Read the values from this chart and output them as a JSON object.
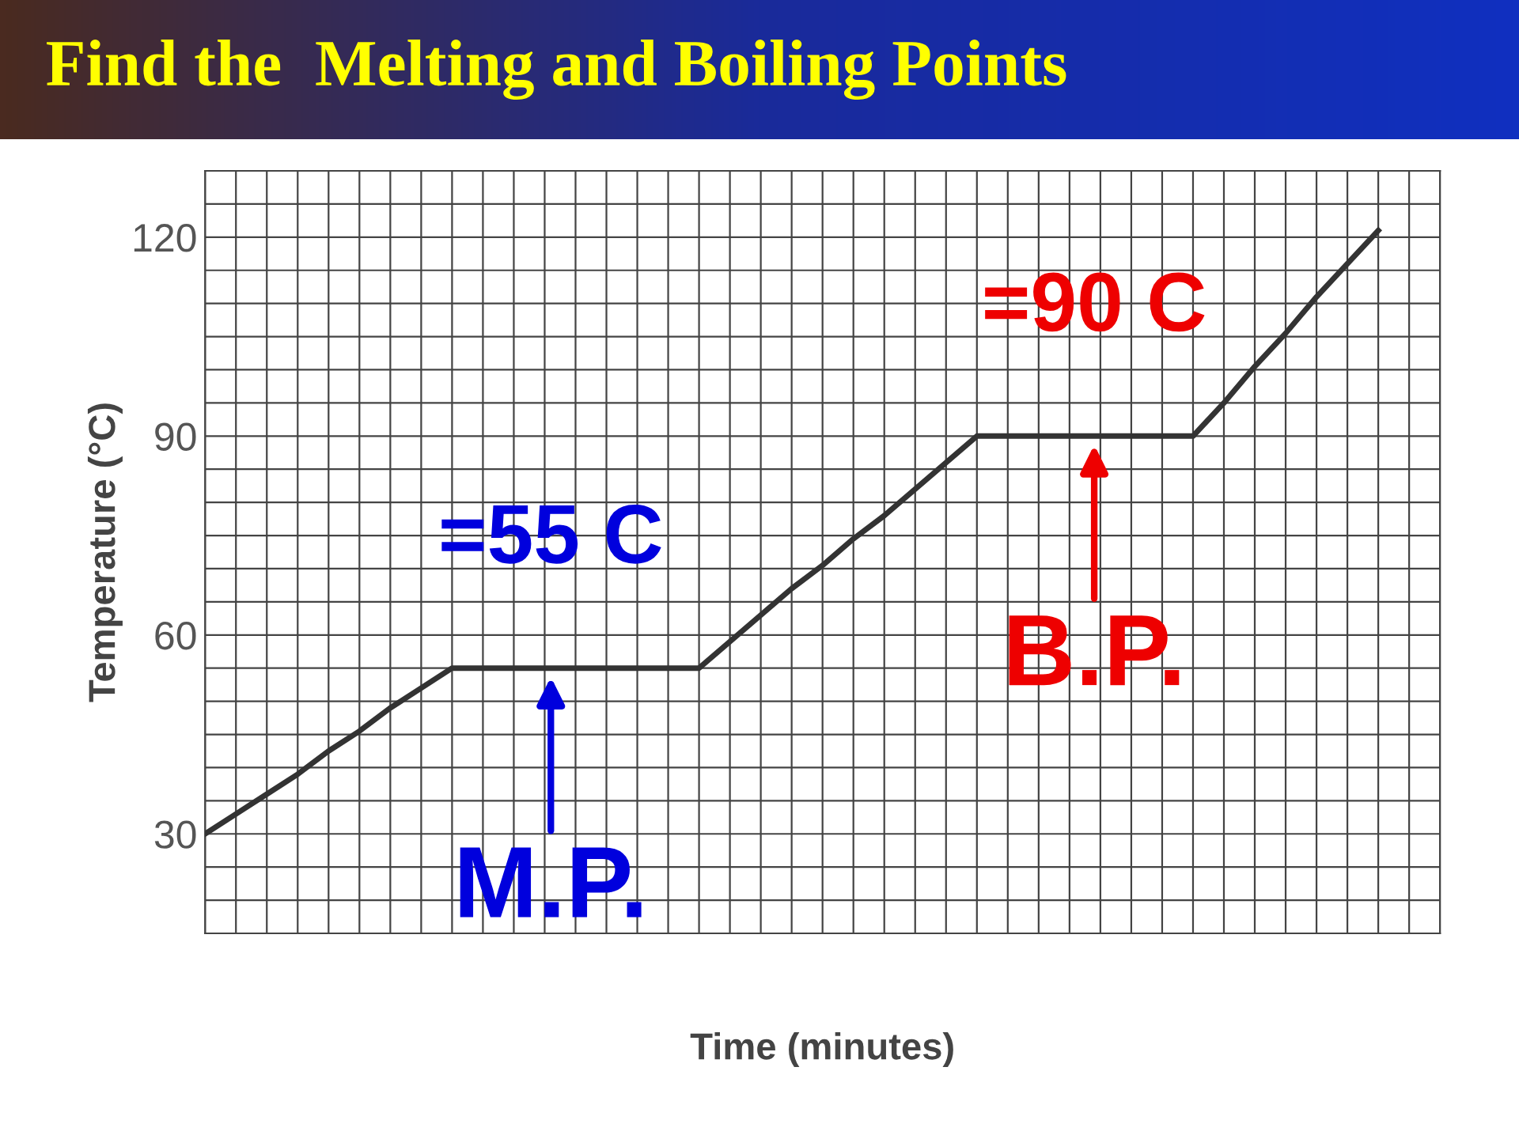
{
  "chart_data": {
    "type": "line",
    "title": "Find the  Melting and Boiling Points",
    "xlabel": "Time (minutes)",
    "ylabel": "Temperature (°C)",
    "categories": [
      null,
      null,
      null,
      null,
      null,
      null,
      null,
      null,
      null,
      null,
      null,
      null,
      null,
      null,
      null,
      null,
      null,
      null,
      null,
      null,
      null,
      null,
      null,
      null,
      null,
      null,
      null,
      null,
      null,
      null,
      null,
      null,
      null,
      null,
      null,
      null,
      null,
      null,
      null,
      null,
      null
    ],
    "series": [
      {
        "color": "#333333",
        "values": [
          30,
          33,
          36,
          39,
          42.5,
          45.5,
          49,
          52,
          55,
          55,
          55,
          55,
          55,
          55,
          55,
          55,
          55,
          59,
          63,
          67,
          70.5,
          74.5,
          78,
          82,
          86,
          90,
          90,
          90,
          90,
          90,
          90,
          90,
          90,
          95,
          100.5,
          105.5,
          111,
          116,
          121,
          null,
          null
        ]
      }
    ],
    "ylim": [
      15,
      130
    ],
    "yticks": [
      30,
      60,
      90,
      120
    ],
    "tick_labels": "y",
    "grid": true,
    "line_style": "solid",
    "annotations": [
      {
        "text": "=55 C",
        "y": 55
      },
      {
        "text": "M.P.",
        "y": 55
      },
      {
        "text": "=90 C",
        "y": 90
      },
      {
        "text": "B.P.",
        "y": 90
      }
    ]
  }
}
